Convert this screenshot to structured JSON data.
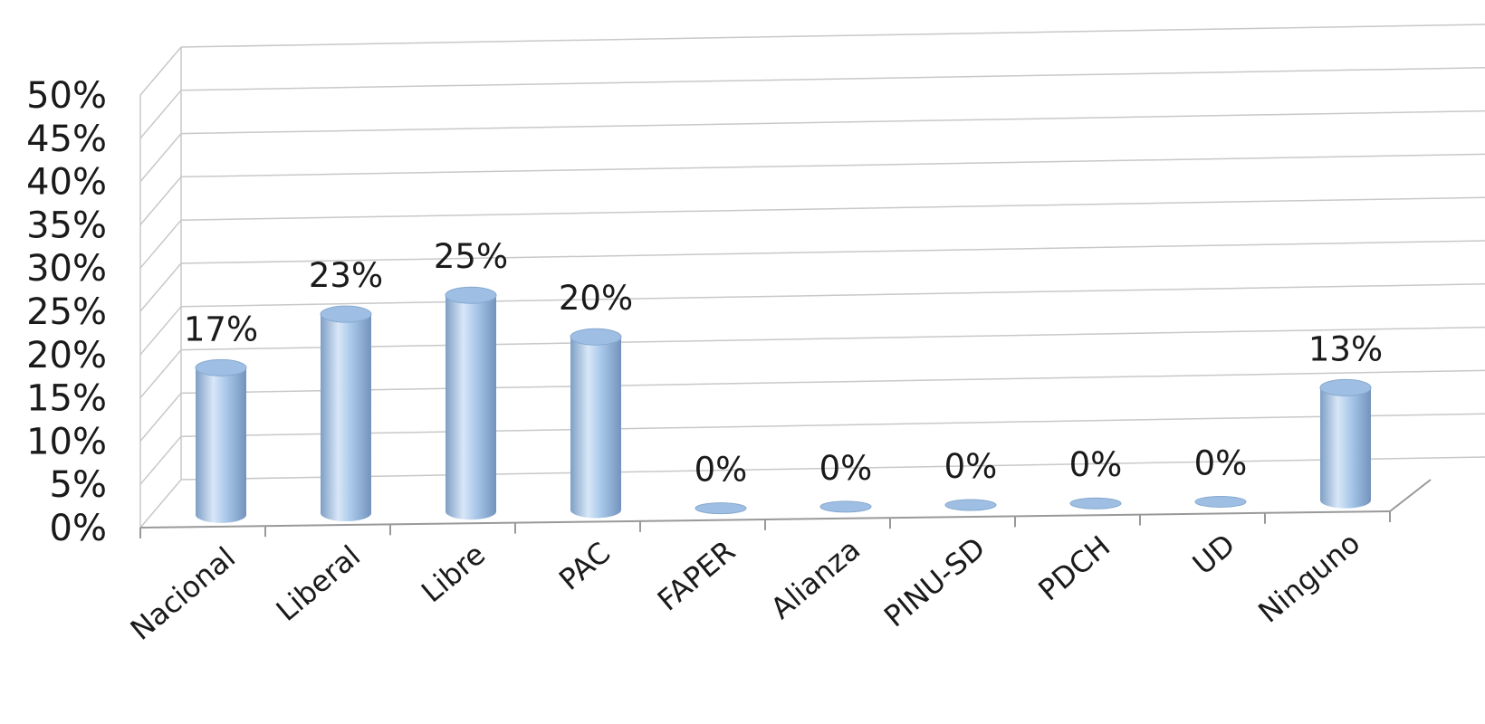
{
  "chart_data": {
    "type": "bar",
    "style": "3d-cylinder",
    "categories": [
      "Nacional",
      "Liberal",
      "Libre",
      "PAC",
      "FAPER",
      "Alianza",
      "PINU-SD",
      "PDCH",
      "UD",
      "Ninguno"
    ],
    "values": [
      17,
      23,
      25,
      20,
      0,
      0,
      0,
      0,
      0,
      13
    ],
    "data_labels": [
      "17%",
      "23%",
      "25%",
      "20%",
      "0%",
      "0%",
      "0%",
      "0%",
      "0%",
      "13%"
    ],
    "y_ticks": [
      "0%",
      "5%",
      "10%",
      "15%",
      "20%",
      "25%",
      "30%",
      "35%",
      "40%",
      "45%",
      "50%"
    ],
    "ylim": [
      0,
      50
    ],
    "grid": true,
    "legend": "none",
    "colors": {
      "bar": "#a9c8ea",
      "bar_dark": "#7f9fc6",
      "bar_light": "#d8e7f7",
      "grid": "#c8c8c8"
    }
  }
}
